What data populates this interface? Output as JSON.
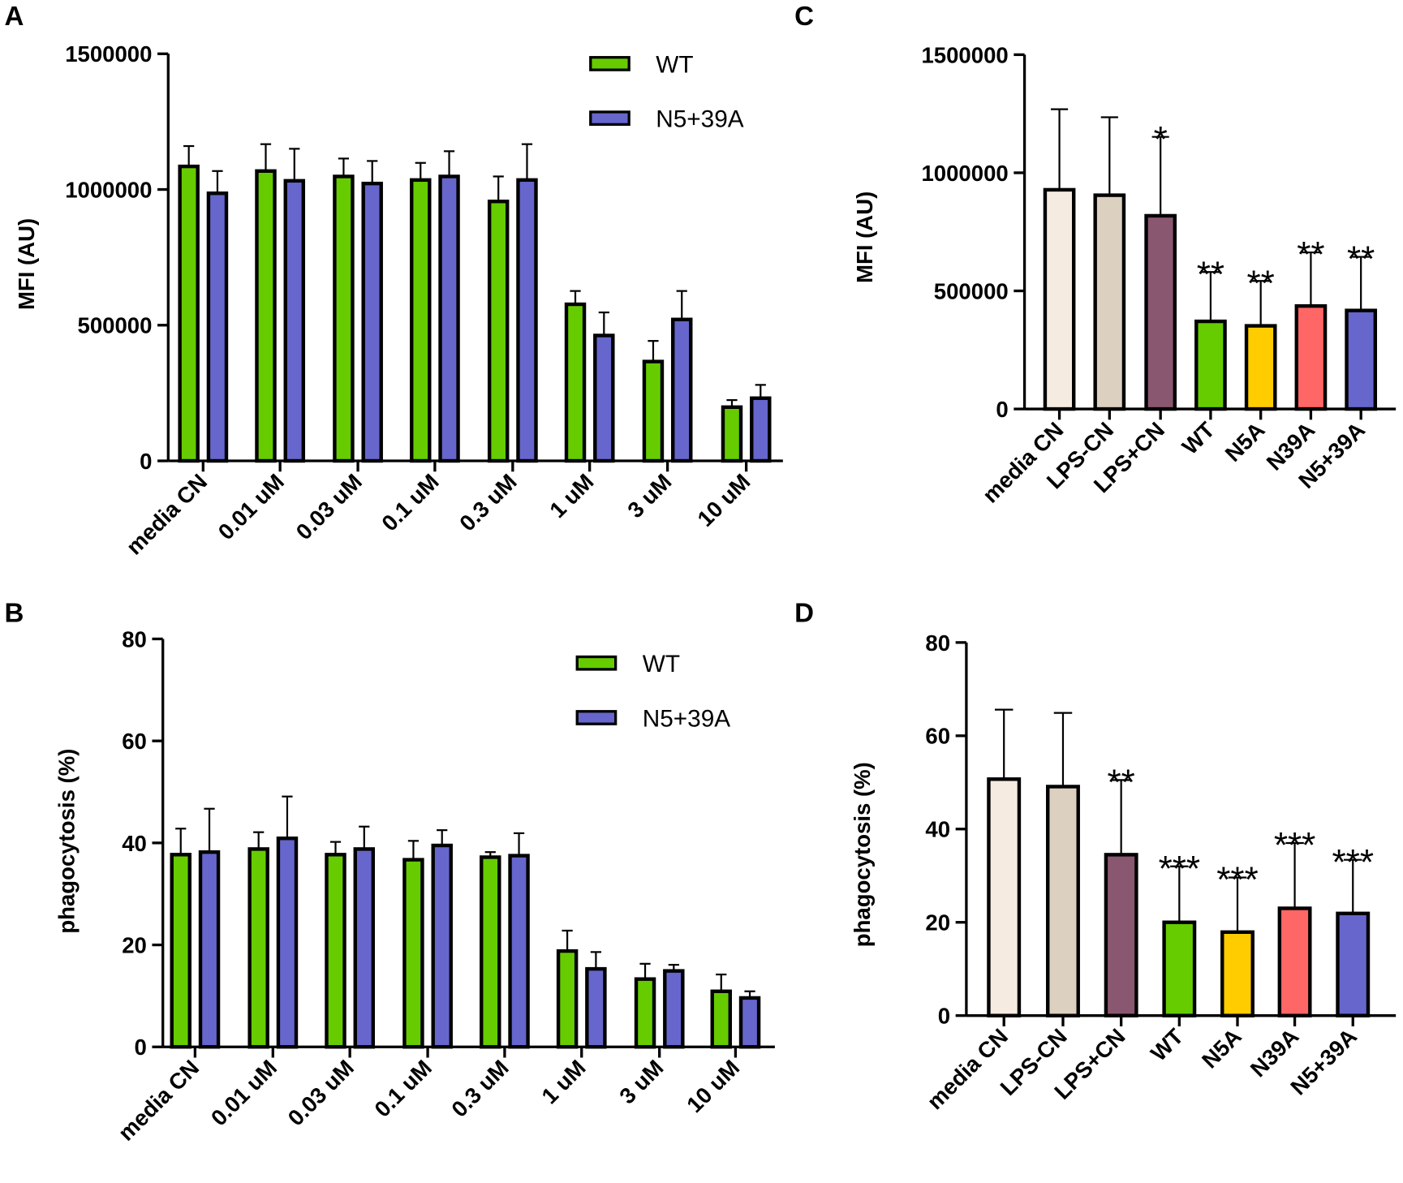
{
  "chart_data": [
    {
      "panel": "A",
      "type": "bar",
      "ylabel": "MFI (AU)",
      "ylim": [
        0,
        1500000
      ],
      "yticks": [
        "0",
        "500000",
        "1000000",
        "1500000"
      ],
      "ytick_values": [
        0,
        500000,
        1000000,
        1500000
      ],
      "legend_position": "top-right",
      "categories": [
        "media CN",
        "0.01 uM",
        "0.03 uM",
        "0.1 uM",
        "0.3 uM",
        "1 uM",
        "3 uM",
        "10 uM"
      ],
      "series": [
        {
          "name": "WT",
          "color": "#66cc00",
          "values": [
            1085000,
            1068000,
            1048000,
            1035000,
            956000,
            577000,
            366000,
            198000
          ],
          "errors": [
            75000,
            99000,
            66000,
            63000,
            92000,
            49000,
            76000,
            26000
          ]
        },
        {
          "name": "N5+39A",
          "color": "#6666cc",
          "values": [
            986000,
            1032000,
            1022000,
            1048000,
            1035000,
            462000,
            521000,
            231000
          ],
          "errors": [
            82000,
            118000,
            83000,
            93000,
            132000,
            85000,
            105000,
            49000
          ]
        }
      ]
    },
    {
      "panel": "B",
      "type": "bar",
      "ylabel": "phagocytosis (%)",
      "ylim": [
        0,
        80
      ],
      "yticks": [
        "0",
        "20",
        "40",
        "60",
        "80"
      ],
      "ytick_values": [
        0,
        20,
        40,
        60,
        80
      ],
      "legend_position": "top-right",
      "categories": [
        "media CN",
        "0.01 uM",
        "0.03 uM",
        "0.1 uM",
        "0.3 uM",
        "1 uM",
        "3 uM",
        "10 uM"
      ],
      "series": [
        {
          "name": "WT",
          "color": "#66cc00",
          "values": [
            37.7,
            38.8,
            37.7,
            36.7,
            37.2,
            18.8,
            13.3,
            10.9
          ],
          "errors": [
            5.1,
            3.3,
            2.5,
            3.7,
            1.0,
            4.0,
            3.0,
            3.3
          ]
        },
        {
          "name": "N5+39A",
          "color": "#6666cc",
          "values": [
            38.2,
            40.9,
            38.8,
            39.5,
            37.5,
            15.3,
            14.9,
            9.6
          ],
          "errors": [
            8.5,
            8.2,
            4.4,
            3.0,
            4.4,
            3.3,
            1.2,
            1.3
          ]
        }
      ]
    },
    {
      "panel": "C",
      "type": "bar",
      "ylabel": "MFI (AU)",
      "ylim": [
        0,
        1500000
      ],
      "yticks": [
        "0",
        "500000",
        "1000000",
        "1500000"
      ],
      "ytick_values": [
        0,
        500000,
        1000000,
        1500000
      ],
      "categories": [
        "media CN",
        "LPS-CN",
        "LPS+CN",
        "WT",
        "N5A",
        "N39A",
        "N5+39A"
      ],
      "colors": [
        "#f5ebe0",
        "#dcd0c0",
        "#8a5770",
        "#66cc00",
        "#ffcc00",
        "#ff6666",
        "#6666cc"
      ],
      "values": [
        928000,
        905000,
        818000,
        371000,
        352000,
        436000,
        417000
      ],
      "errors": [
        341000,
        330000,
        334000,
        209000,
        190000,
        227000,
        227000
      ],
      "annotations": [
        "",
        "",
        "*",
        "**",
        "**",
        "**",
        "**"
      ]
    },
    {
      "panel": "D",
      "type": "bar",
      "ylabel": "phagocytosis (%)",
      "ylim": [
        0,
        80
      ],
      "yticks": [
        "0",
        "20",
        "40",
        "60",
        "80"
      ],
      "ytick_values": [
        0,
        20,
        40,
        60,
        80
      ],
      "categories": [
        "media CN",
        "LPS-CN",
        "LPS+CN",
        "WT",
        "N5A",
        "N39A",
        "N5+39A"
      ],
      "colors": [
        "#f5ebe0",
        "#dcd0c0",
        "#8a5770",
        "#66cc00",
        "#ffcc00",
        "#ff6666",
        "#6666cc"
      ],
      "values": [
        50.7,
        49.1,
        34.5,
        20.0,
        17.9,
        23.0,
        21.9
      ],
      "errors": [
        14.9,
        15.8,
        16.0,
        12.0,
        11.7,
        14.0,
        11.5
      ],
      "annotations": [
        "",
        "",
        "**",
        "***",
        "***",
        "***",
        "***"
      ]
    }
  ]
}
